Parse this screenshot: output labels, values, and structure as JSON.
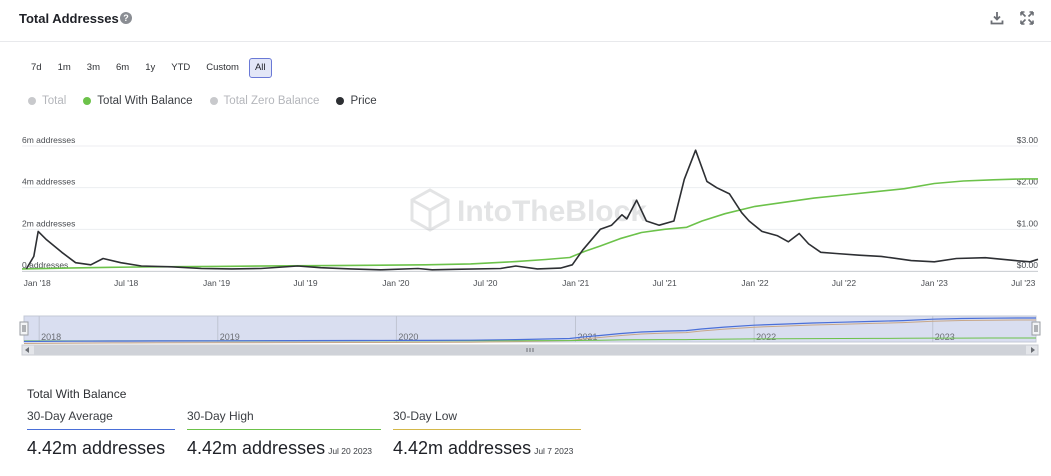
{
  "header": {
    "title": "Total Addresses",
    "help_icon": "question-circle-icon",
    "download_icon": "download-icon",
    "expand_icon": "fullscreen-icon"
  },
  "ranges": {
    "items": [
      "7d",
      "1m",
      "3m",
      "6m",
      "1y",
      "YTD",
      "Custom",
      "All"
    ],
    "active": "All"
  },
  "legend": [
    {
      "label": "Total",
      "color": "#c8c9cc",
      "active": false
    },
    {
      "label": "Total With Balance",
      "color": "#6cc24a",
      "active": true
    },
    {
      "label": "Total Zero Balance",
      "color": "#c8c9cc",
      "active": false
    },
    {
      "label": "Price",
      "color": "#2d2f33",
      "active": true
    }
  ],
  "watermark": "IntoTheBlock",
  "chart_data": {
    "type": "line",
    "x_range": [
      "2017-12-01",
      "2023-07-31"
    ],
    "x_ticks": [
      "Jan '18",
      "Jul '18",
      "Jan '19",
      "Jul '19",
      "Jan '20",
      "Jul '20",
      "Jan '21",
      "Jul '21",
      "Jan '22",
      "Jul '22",
      "Jan '23",
      "Jul '23"
    ],
    "x_tick_dates": [
      "2018-01-01",
      "2018-07-01",
      "2019-01-01",
      "2019-07-01",
      "2020-01-01",
      "2020-07-01",
      "2021-01-01",
      "2021-07-01",
      "2022-01-01",
      "2022-07-01",
      "2023-01-01",
      "2023-07-01"
    ],
    "y_left": {
      "ticks": [
        "0 addresses",
        "2m addresses",
        "4m addresses",
        "6m addresses"
      ],
      "tick_values": [
        0,
        2,
        4,
        6
      ],
      "unit": "m",
      "ylim": [
        0,
        6
      ]
    },
    "y_right": {
      "ticks": [
        "$0.00",
        "$1.00",
        "$2.00",
        "$3.00"
      ],
      "tick_values": [
        0,
        1,
        2,
        3
      ],
      "ylim": [
        0,
        3
      ]
    },
    "grid": true,
    "series": [
      {
        "name": "Total With Balance",
        "axis": "left",
        "color": "#6cc24a",
        "points": [
          [
            "2017-12-01",
            0.1
          ],
          [
            "2018-03-01",
            0.14
          ],
          [
            "2018-06-01",
            0.18
          ],
          [
            "2018-09-01",
            0.2
          ],
          [
            "2019-01-01",
            0.22
          ],
          [
            "2019-06-01",
            0.25
          ],
          [
            "2019-10-01",
            0.27
          ],
          [
            "2020-03-01",
            0.3
          ],
          [
            "2020-06-01",
            0.34
          ],
          [
            "2020-09-01",
            0.45
          ],
          [
            "2020-11-01",
            0.55
          ],
          [
            "2020-12-20",
            0.65
          ],
          [
            "2021-01-20",
            0.95
          ],
          [
            "2021-02-20",
            1.2
          ],
          [
            "2021-04-01",
            1.55
          ],
          [
            "2021-05-15",
            1.85
          ],
          [
            "2021-07-01",
            2.0
          ],
          [
            "2021-08-15",
            2.1
          ],
          [
            "2021-09-15",
            2.4
          ],
          [
            "2021-11-01",
            2.75
          ],
          [
            "2022-01-01",
            3.1
          ],
          [
            "2022-03-01",
            3.3
          ],
          [
            "2022-05-01",
            3.5
          ],
          [
            "2022-07-01",
            3.65
          ],
          [
            "2022-09-01",
            3.8
          ],
          [
            "2022-11-01",
            3.95
          ],
          [
            "2023-01-01",
            4.2
          ],
          [
            "2023-03-01",
            4.32
          ],
          [
            "2023-05-01",
            4.38
          ],
          [
            "2023-07-01",
            4.42
          ],
          [
            "2023-07-31",
            4.42
          ]
        ]
      },
      {
        "name": "Price",
        "axis": "right",
        "color": "#2d2f33",
        "points": [
          [
            "2017-12-10",
            0.05
          ],
          [
            "2017-12-25",
            0.35
          ],
          [
            "2018-01-03",
            0.95
          ],
          [
            "2018-01-20",
            0.75
          ],
          [
            "2018-02-20",
            0.45
          ],
          [
            "2018-03-20",
            0.2
          ],
          [
            "2018-04-20",
            0.15
          ],
          [
            "2018-05-15",
            0.3
          ],
          [
            "2018-06-20",
            0.2
          ],
          [
            "2018-08-01",
            0.12
          ],
          [
            "2018-10-01",
            0.1
          ],
          [
            "2018-12-01",
            0.06
          ],
          [
            "2019-02-01",
            0.05
          ],
          [
            "2019-04-01",
            0.06
          ],
          [
            "2019-06-15",
            0.12
          ],
          [
            "2019-08-01",
            0.08
          ],
          [
            "2019-10-01",
            0.05
          ],
          [
            "2019-12-01",
            0.03
          ],
          [
            "2020-02-15",
            0.06
          ],
          [
            "2020-03-15",
            0.03
          ],
          [
            "2020-05-01",
            0.04
          ],
          [
            "2020-08-01",
            0.06
          ],
          [
            "2020-09-01",
            0.12
          ],
          [
            "2020-10-15",
            0.05
          ],
          [
            "2020-12-01",
            0.07
          ],
          [
            "2020-12-25",
            0.15
          ],
          [
            "2021-01-15",
            0.5
          ],
          [
            "2021-02-20",
            1.0
          ],
          [
            "2021-03-15",
            1.1
          ],
          [
            "2021-04-05",
            1.35
          ],
          [
            "2021-04-15",
            1.25
          ],
          [
            "2021-05-05",
            1.7
          ],
          [
            "2021-05-25",
            1.2
          ],
          [
            "2021-06-20",
            1.1
          ],
          [
            "2021-07-20",
            1.2
          ],
          [
            "2021-08-10",
            2.2
          ],
          [
            "2021-09-02",
            2.9
          ],
          [
            "2021-09-25",
            2.15
          ],
          [
            "2021-10-15",
            2.0
          ],
          [
            "2021-11-10",
            1.85
          ],
          [
            "2021-12-05",
            1.4
          ],
          [
            "2021-12-20",
            1.2
          ],
          [
            "2022-01-15",
            0.95
          ],
          [
            "2022-02-15",
            0.85
          ],
          [
            "2022-03-10",
            0.7
          ],
          [
            "2022-04-01",
            0.9
          ],
          [
            "2022-04-20",
            0.65
          ],
          [
            "2022-05-15",
            0.45
          ],
          [
            "2022-06-15",
            0.42
          ],
          [
            "2022-08-01",
            0.38
          ],
          [
            "2022-09-15",
            0.35
          ],
          [
            "2022-11-15",
            0.25
          ],
          [
            "2023-01-01",
            0.22
          ],
          [
            "2023-02-15",
            0.3
          ],
          [
            "2023-04-15",
            0.32
          ],
          [
            "2023-06-15",
            0.25
          ],
          [
            "2023-07-15",
            0.22
          ],
          [
            "2023-07-31",
            0.28
          ]
        ]
      }
    ]
  },
  "navigator": {
    "labels": [
      "2018",
      "2019",
      "2020",
      "2021",
      "2022",
      "2023"
    ],
    "label_dates": [
      "2018-01-01",
      "2019-01-01",
      "2020-01-01",
      "2021-01-01",
      "2022-01-01",
      "2023-01-01"
    ]
  },
  "stats": {
    "title": "Total With Balance",
    "items": [
      {
        "label": "30-Day Average",
        "value": "4.42m addresses",
        "date": "",
        "line_color": "#4a6fd8"
      },
      {
        "label": "30-Day High",
        "value": "4.42m addresses",
        "date": "Jul 20 2023",
        "line_color": "#6cc24a"
      },
      {
        "label": "30-Day Low",
        "value": "4.42m addresses",
        "date": "Jul 7 2023",
        "line_color": "#d4b84a"
      }
    ]
  }
}
